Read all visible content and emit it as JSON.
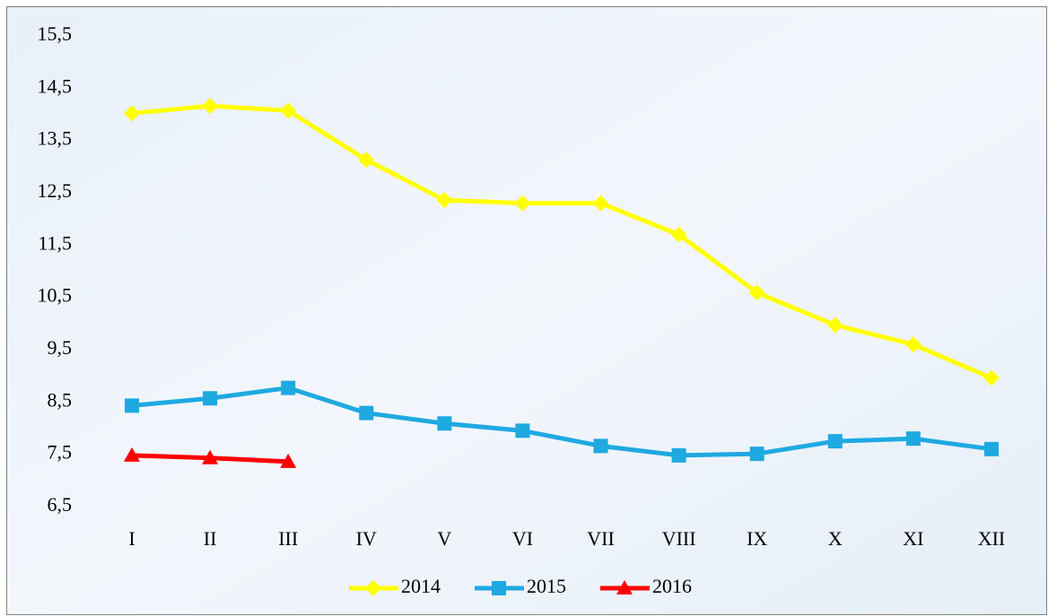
{
  "chart_data": {
    "type": "line",
    "categories": [
      "I",
      "II",
      "III",
      "IV",
      "V",
      "VI",
      "VII",
      "VIII",
      "IX",
      "X",
      "XI",
      "XII"
    ],
    "series": [
      {
        "name": "2014",
        "color": "#ffff00",
        "marker": "diamond",
        "values": [
          14.02,
          14.16,
          14.07,
          13.13,
          12.36,
          12.3,
          12.3,
          11.7,
          10.59,
          9.97,
          9.6,
          8.96
        ]
      },
      {
        "name": "2015",
        "color": "#1fa9e1",
        "marker": "square",
        "values": [
          8.43,
          8.57,
          8.77,
          8.29,
          8.09,
          7.95,
          7.66,
          7.48,
          7.51,
          7.75,
          7.8,
          7.6
        ]
      },
      {
        "name": "2016",
        "color": "#ff0000",
        "marker": "triangle",
        "values": [
          7.48,
          7.43,
          7.36,
          null,
          null,
          null,
          null,
          null,
          null,
          null,
          null,
          null
        ]
      }
    ],
    "ylim": [
      6.5,
      15.5
    ],
    "yticks": [
      {
        "value": 6.5,
        "label": "6,5"
      },
      {
        "value": 7.5,
        "label": "7,5"
      },
      {
        "value": 8.5,
        "label": "8,5"
      },
      {
        "value": 9.5,
        "label": "9,5"
      },
      {
        "value": 10.5,
        "label": "10,5"
      },
      {
        "value": 11.5,
        "label": "11,5"
      },
      {
        "value": 12.5,
        "label": "12,5"
      },
      {
        "value": 13.5,
        "label": "13,5"
      },
      {
        "value": 14.5,
        "label": "14,5"
      },
      {
        "value": 15.5,
        "label": "15,5"
      }
    ],
    "grid": false,
    "legend": "bottom"
  }
}
